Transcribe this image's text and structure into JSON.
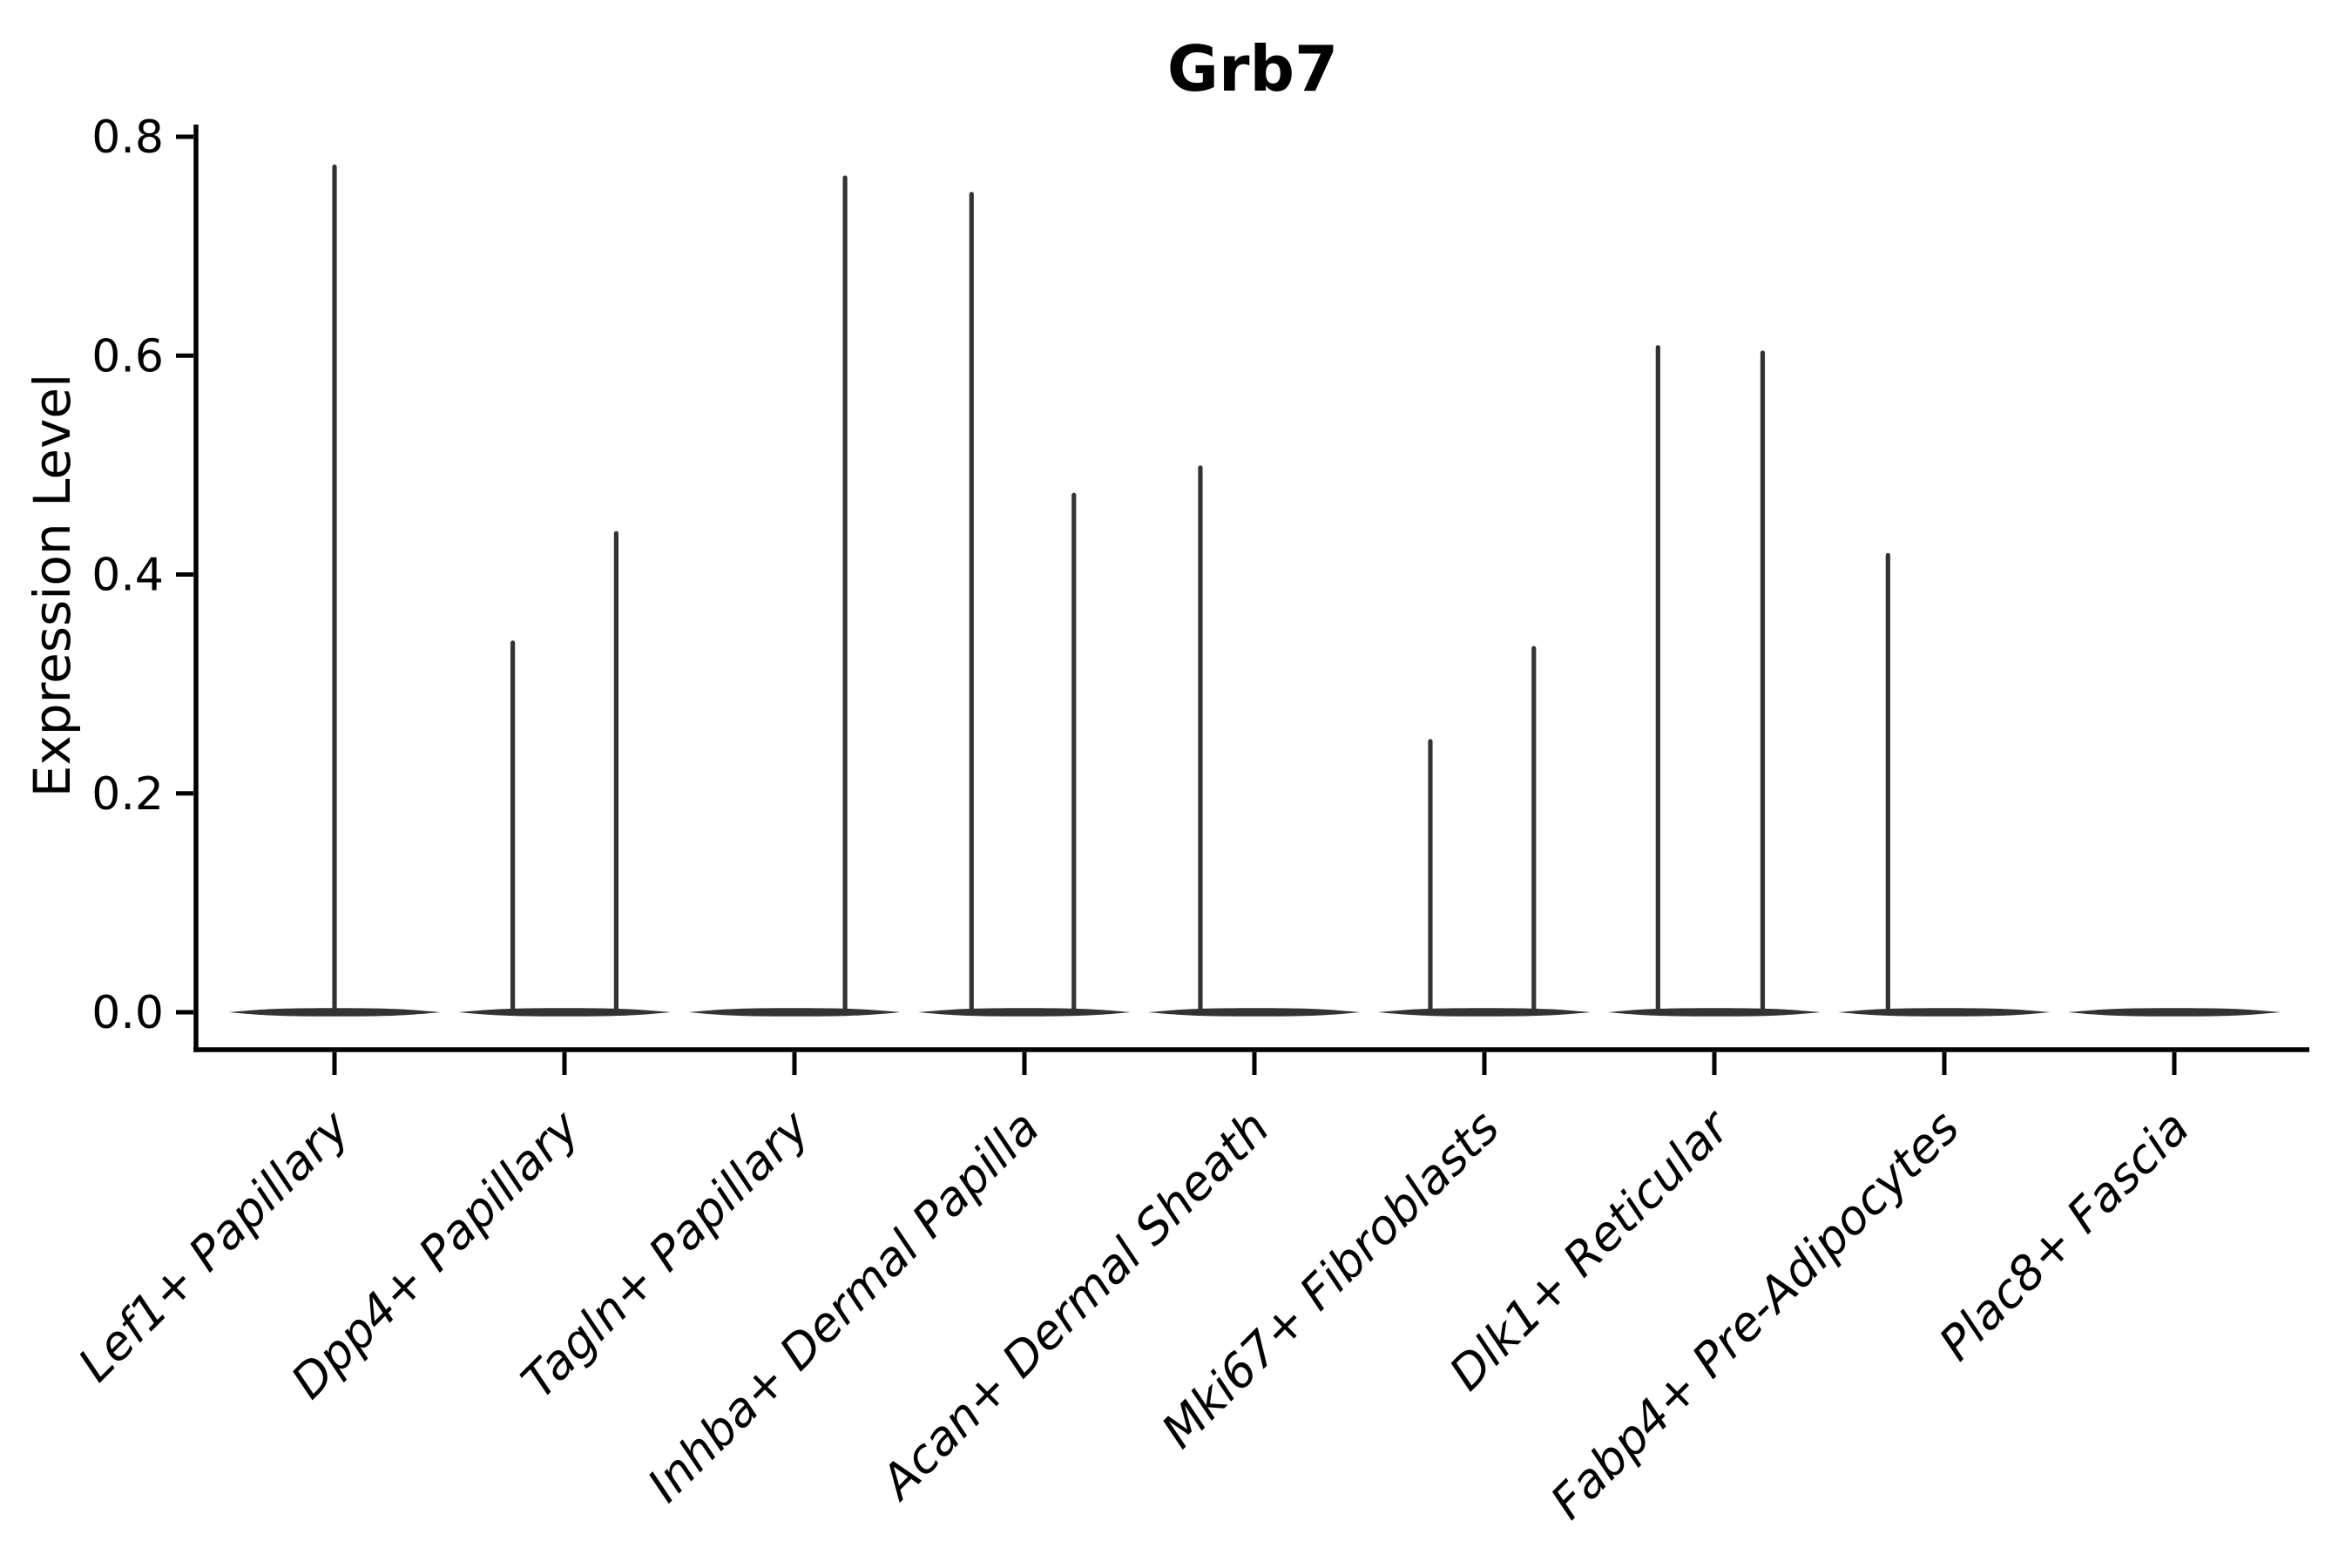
{
  "title": "Grb7",
  "y_axis": {
    "label": "Expression Level",
    "tick_labels": [
      "0.0",
      "0.2",
      "0.4",
      "0.6",
      "0.8"
    ],
    "range": [
      0,
      0.8
    ]
  },
  "x_axis": {
    "categories": [
      "Lef1+ Papillary",
      "Dpp4+ Papillary",
      "Tagln+ Papillary",
      "Inhba+ Dermal Papilla",
      "Acan+ Dermal Sheath",
      "Mki67+ Fibroblasts",
      "Dlk1+ Reticular",
      "Fabp4+ Pre-Adipocytes",
      "Plac8+ Fascia"
    ]
  },
  "chart_data": {
    "type": "violin",
    "title": "Grb7",
    "xlabel": "",
    "ylabel": "Expression Level",
    "ylim": [
      0,
      0.8
    ],
    "y_ticks": [
      0.0,
      0.2,
      0.4,
      0.6,
      0.8
    ],
    "y_tick_labels": [
      "0.0",
      "0.2",
      "0.4",
      "0.6",
      "0.8"
    ],
    "grid": false,
    "legend_position": "none",
    "description": "Violin plot of Grb7 expression per fibroblast cell type; expression mass is concentrated at 0 (flat violin body) with thin vertical spikes reaching each distribution's maximum.",
    "categories": [
      "Lef1+ Papillary",
      "Dpp4+ Papillary",
      "Tagln+ Papillary",
      "Inhba+ Dermal Papilla",
      "Acan+ Dermal Sheath",
      "Mki67+ Fibroblasts",
      "Dlk1+ Reticular",
      "Fabp4+ Pre-Adipocytes",
      "Plac8+ Fascia"
    ],
    "violins": [
      {
        "category": "Lef1+ Papillary",
        "zero_bulk": true,
        "spikes": [
          {
            "dx_frac": 0.0,
            "max": 0.775
          }
        ]
      },
      {
        "category": "Dpp4+ Papillary",
        "zero_bulk": true,
        "spikes": [
          {
            "dx_frac": -0.225,
            "max": 0.34
          },
          {
            "dx_frac": 0.225,
            "max": 0.44
          }
        ]
      },
      {
        "category": "Tagln+ Papillary",
        "zero_bulk": true,
        "spikes": [
          {
            "dx_frac": 0.22,
            "max": 0.765
          }
        ]
      },
      {
        "category": "Inhba+ Dermal Papilla",
        "zero_bulk": true,
        "spikes": [
          {
            "dx_frac": -0.23,
            "max": 0.75
          },
          {
            "dx_frac": 0.215,
            "max": 0.475
          }
        ]
      },
      {
        "category": "Acan+ Dermal Sheath",
        "zero_bulk": true,
        "spikes": [
          {
            "dx_frac": -0.235,
            "max": 0.5
          }
        ]
      },
      {
        "category": "Mki67+ Fibroblasts",
        "zero_bulk": true,
        "spikes": [
          {
            "dx_frac": -0.235,
            "max": 0.25
          },
          {
            "dx_frac": 0.215,
            "max": 0.335
          }
        ]
      },
      {
        "category": "Dlk1+ Reticular",
        "zero_bulk": true,
        "spikes": [
          {
            "dx_frac": -0.245,
            "max": 0.61
          },
          {
            "dx_frac": 0.21,
            "max": 0.605
          }
        ]
      },
      {
        "category": "Fabp4+ Pre-Adipocytes",
        "zero_bulk": true,
        "spikes": [
          {
            "dx_frac": -0.245,
            "max": 0.42
          }
        ]
      },
      {
        "category": "Plac8+ Fascia",
        "zero_bulk": true,
        "spikes": []
      }
    ],
    "colors": {
      "violin": "#333333",
      "axis": "#000000",
      "text": "#000000",
      "background": "#ffffff"
    }
  }
}
